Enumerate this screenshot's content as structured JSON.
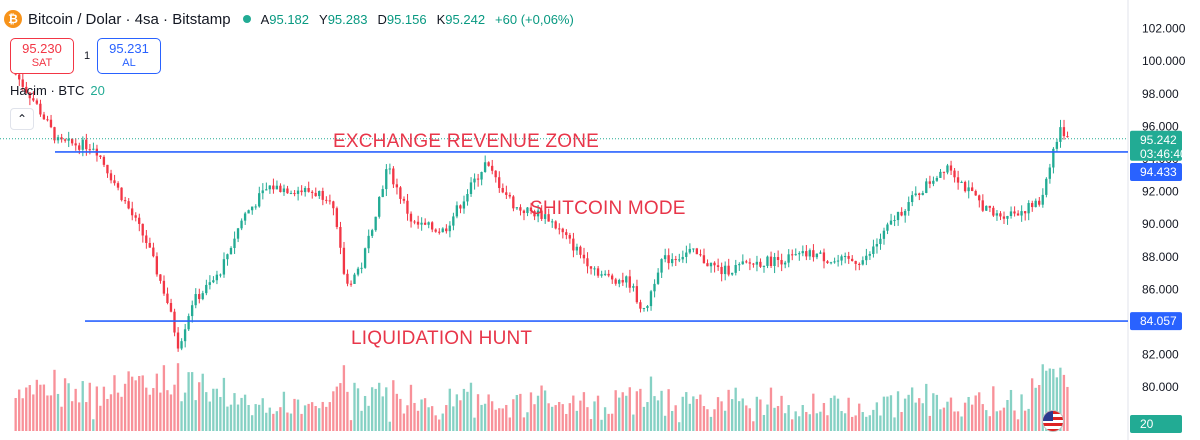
{
  "header": {
    "coin_icon": "bitcoin-icon",
    "symbol_title": "Bitcoin / Dolar · 4sa · Bitstamp",
    "open_label": "A",
    "open_value": "95.182",
    "high_label": "Y",
    "high_value": "95.283",
    "low_label": "D",
    "low_value": "95.156",
    "close_label": "K",
    "close_value": "95.242",
    "change": "+60 (+0,06%)"
  },
  "trade": {
    "sell_price": "95.230",
    "sell_label": "SAT",
    "spread": "1",
    "buy_price": "95.231",
    "buy_label": "AL"
  },
  "volume_indicator": {
    "name": "Hacim · BTC",
    "value": "20"
  },
  "annotations": {
    "top_zone": "EXCHANGE REVENUE ZONE",
    "middle": "SHITCOIN MODE",
    "bottom": "LIQUIDATION HUNT"
  },
  "price_axis": {
    "current_price": "95.242",
    "countdown": "03:46:40",
    "resistance_label": "94.433",
    "support_label": "84.057",
    "volume_label": "20"
  },
  "colors": {
    "up": "#22ab94",
    "down": "#f23645",
    "hline": "#2962ff",
    "annotation": "#e8364a"
  },
  "chart_data": {
    "type": "candlestick",
    "title": "Bitcoin / Dolar · 4sa · Bitstamp",
    "y_axis_ticks": [
      "102.000",
      "100.000",
      "98.000",
      "96.000",
      "94.000",
      "92.000",
      "90.000",
      "88.000",
      "86.000",
      "84.000",
      "82.000",
      "80.000"
    ],
    "ylim": [
      79000,
      103000
    ],
    "horizontal_lines": [
      {
        "name": "resistance",
        "value": 94433
      },
      {
        "name": "support",
        "value": 84057
      }
    ],
    "price_path_anchors": [
      [
        0,
        99500
      ],
      [
        0.022,
        97500
      ],
      [
        0.045,
        95000
      ],
      [
        0.08,
        94800
      ],
      [
        0.1,
        92500
      ],
      [
        0.13,
        89000
      ],
      [
        0.15,
        85500
      ],
      [
        0.162,
        82500
      ],
      [
        0.175,
        85200
      ],
      [
        0.2,
        86800
      ],
      [
        0.225,
        90500
      ],
      [
        0.25,
        92300
      ],
      [
        0.29,
        92000
      ],
      [
        0.31,
        91700
      ],
      [
        0.325,
        86200
      ],
      [
        0.34,
        87500
      ],
      [
        0.365,
        93500
      ],
      [
        0.39,
        90000
      ],
      [
        0.42,
        89600
      ],
      [
        0.46,
        93700
      ],
      [
        0.49,
        91000
      ],
      [
        0.52,
        90500
      ],
      [
        0.555,
        88000
      ],
      [
        0.575,
        86800
      ],
      [
        0.6,
        86500
      ],
      [
        0.615,
        84500
      ],
      [
        0.63,
        87700
      ],
      [
        0.66,
        88300
      ],
      [
        0.69,
        87100
      ],
      [
        0.72,
        87600
      ],
      [
        0.755,
        87900
      ],
      [
        0.78,
        88200
      ],
      [
        0.8,
        87700
      ],
      [
        0.83,
        87800
      ],
      [
        0.86,
        90500
      ],
      [
        0.88,
        91800
      ],
      [
        0.91,
        93700
      ],
      [
        0.93,
        92000
      ],
      [
        0.955,
        90500
      ],
      [
        0.98,
        90800
      ],
      [
        1.0,
        91300
      ],
      [
        1.012,
        94400
      ],
      [
        1.02,
        95800
      ],
      [
        1.03,
        95242
      ]
    ],
    "last_price": 95242,
    "volume_value": 20
  }
}
